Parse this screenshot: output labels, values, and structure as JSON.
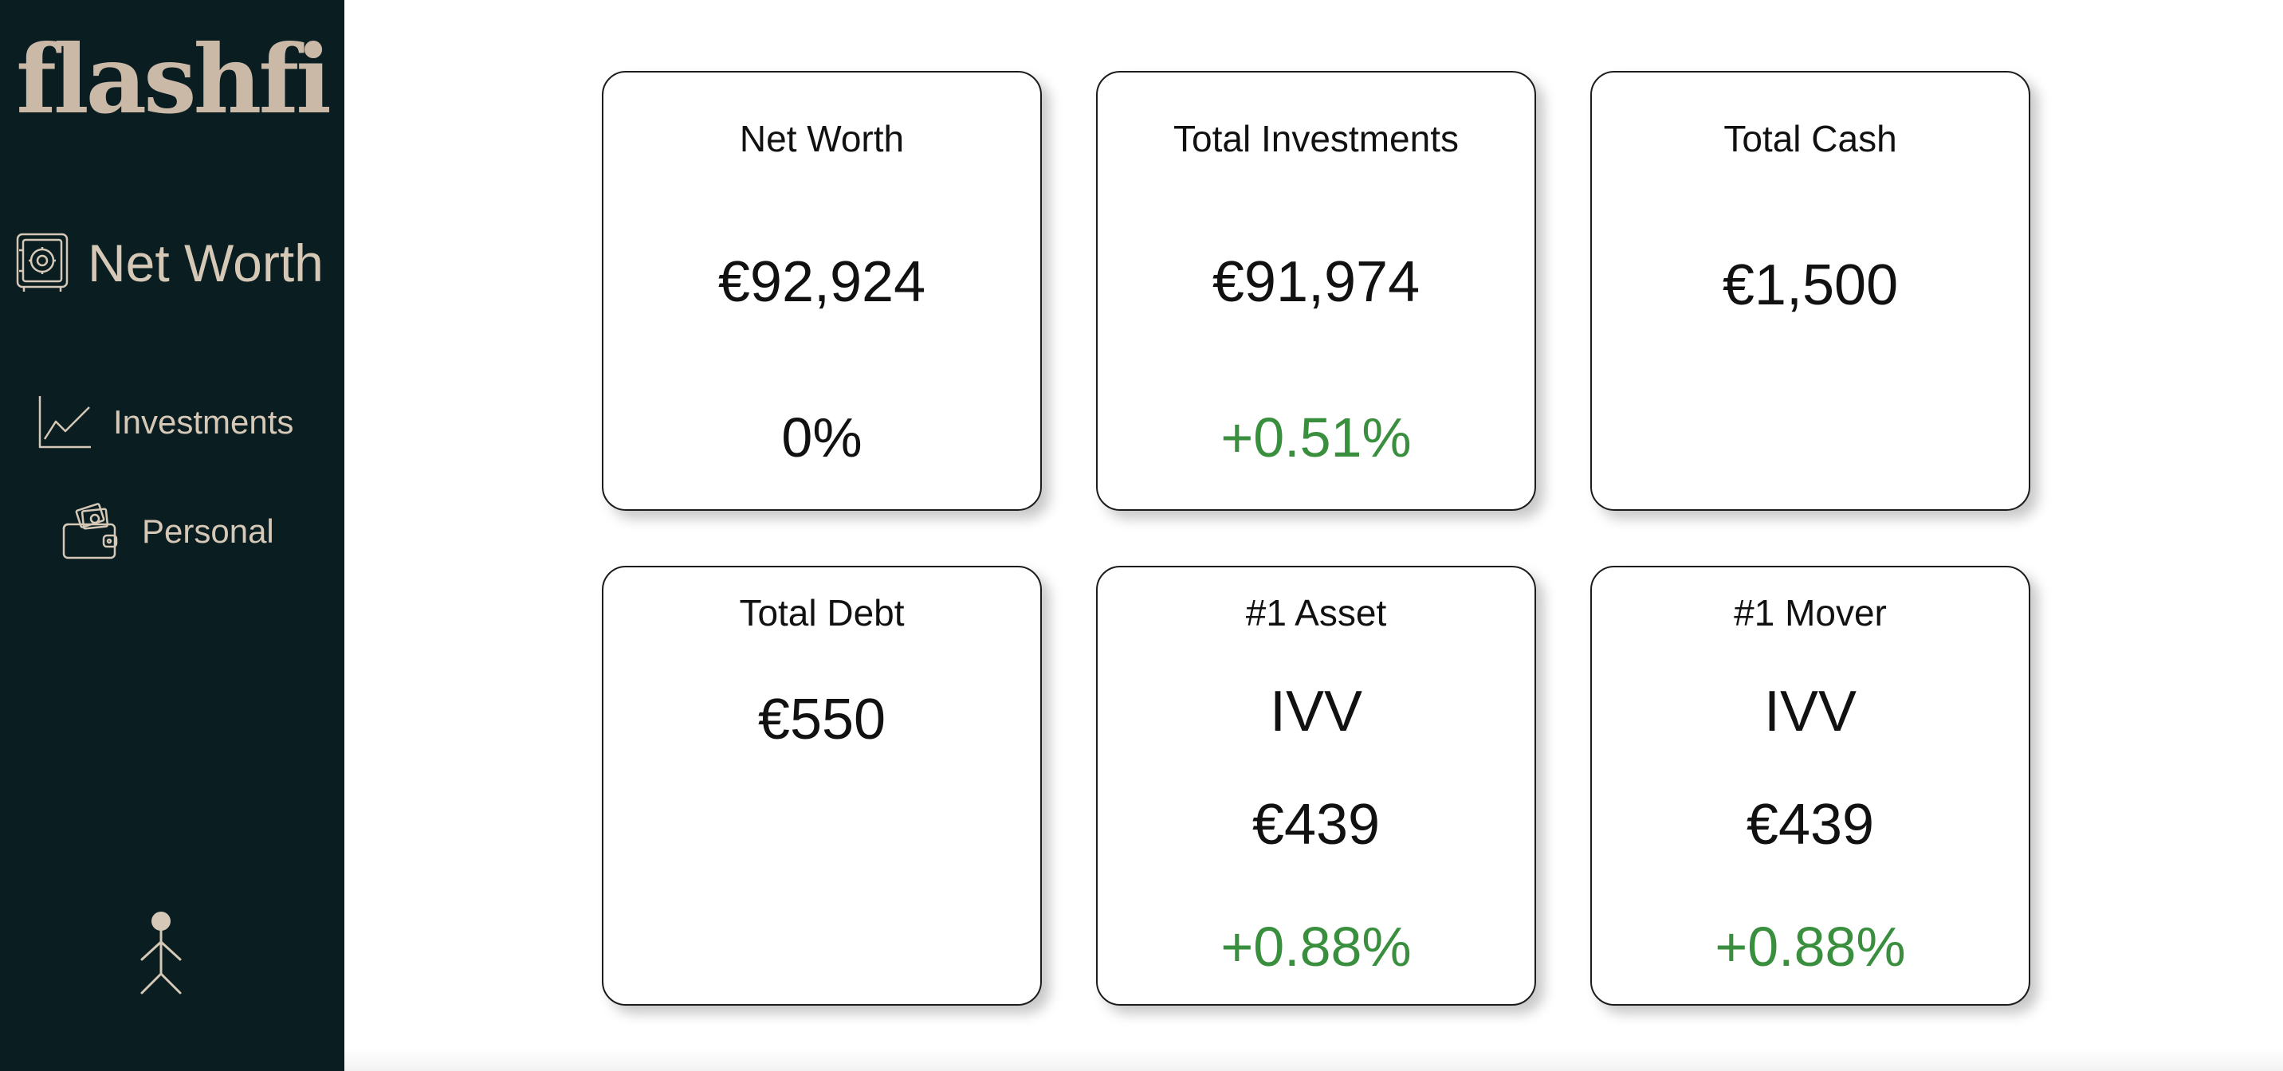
{
  "brand": {
    "name": "flashfi"
  },
  "sidebar": {
    "items": [
      {
        "label": "Net Worth",
        "icon": "safe-icon",
        "active": true
      },
      {
        "label": "Investments",
        "icon": "line-chart-icon"
      },
      {
        "label": "Personal",
        "icon": "wallet-icon"
      }
    ],
    "profile_icon": "stick-figure-icon"
  },
  "colors": {
    "sidebar_bg": "#0a1d21",
    "sidebar_text": "#d6c8b6",
    "positive": "#3a8f3e",
    "text": "#111111"
  },
  "cards": {
    "net_worth": {
      "title": "Net Worth",
      "value": "€92,924",
      "change": "0%"
    },
    "total_investments": {
      "title": "Total Investments",
      "value": "€91,974",
      "change": "+0.51%"
    },
    "total_cash": {
      "title": "Total Cash",
      "value": "€1,500"
    },
    "total_debt": {
      "title": "Total Debt",
      "value": "€550"
    },
    "top_asset": {
      "title": "#1 Asset",
      "ticker": "IVV",
      "value": "€439",
      "change": "+0.88%"
    },
    "top_mover": {
      "title": "#1 Mover",
      "ticker": "IVV",
      "value": "€439",
      "change": "+0.88%"
    }
  }
}
